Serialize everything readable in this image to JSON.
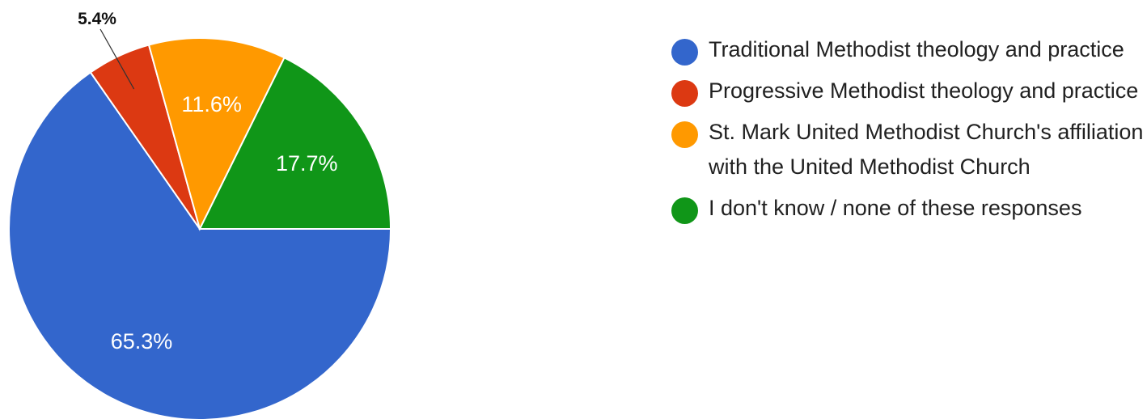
{
  "chart_data": {
    "type": "pie",
    "slices": [
      {
        "label": "Traditional Methodist theology and practice",
        "value": 65.3,
        "display": "65.3%",
        "color": "#3366cc"
      },
      {
        "label": "Progressive Methodist theology and practice",
        "value": 5.4,
        "display": "5.4%",
        "color": "#dc3912"
      },
      {
        "label": "St. Mark United Methodist Church's affiliation with the United Methodist Church",
        "value": 11.6,
        "display": "11.6%",
        "color": "#ff9900"
      },
      {
        "label": "I don't know / none of these responses",
        "value": 17.7,
        "display": "17.7%",
        "color": "#109618"
      }
    ],
    "legend_position": "right"
  }
}
